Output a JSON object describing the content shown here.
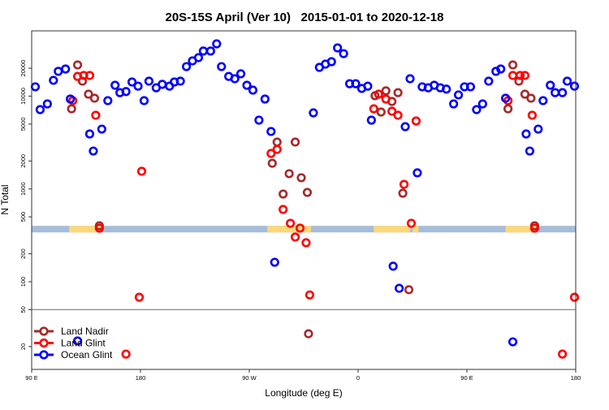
{
  "chart_data": {
    "type": "scatter",
    "title": "20S-15S April (Ver 10)   2015-01-01 to 2020-12-18",
    "xlabel": "Longitude (deg E)",
    "ylabel": "N Total",
    "x_note": "continuous longitude in degrees, 90E wrapping through 180 to 180",
    "xlim": [
      90,
      540
    ],
    "ylim": [
      11,
      51000
    ],
    "yscale": "log",
    "x_ticks": [
      {
        "value": 90,
        "label": "90 E"
      },
      {
        "value": 180,
        "label": "180"
      },
      {
        "value": 270,
        "label": "90 W"
      },
      {
        "value": 360,
        "label": "0"
      },
      {
        "value": 450,
        "label": "90 E"
      },
      {
        "value": 540,
        "label": "180"
      }
    ],
    "y_ticks": [
      {
        "value": 20,
        "label": "20"
      },
      {
        "value": 50,
        "label": "50"
      },
      {
        "value": 100,
        "label": "100"
      },
      {
        "value": 200,
        "label": "200"
      },
      {
        "value": 500,
        "label": "500"
      },
      {
        "value": 1000,
        "label": "1000"
      },
      {
        "value": 2000,
        "label": "2000"
      },
      {
        "value": 5000,
        "label": "5000"
      },
      {
        "value": 10000,
        "label": "10000"
      },
      {
        "value": 20000,
        "label": "20000"
      }
    ],
    "reference_line": 50,
    "legend_position": "bottom-left",
    "land_mask": {
      "level_range": [
        340,
        400
      ],
      "ocean_color": "#a7bcd9",
      "land_color": "#fcd87a",
      "land_segments": [
        [
          121,
          148
        ],
        [
          285,
          321
        ],
        [
          373,
          403
        ],
        [
          405,
          410
        ],
        [
          482,
          509
        ]
      ]
    },
    "series": [
      {
        "name": "Land Nadir",
        "color": "#a52a2a",
        "points": [
          [
            128,
            21700
          ],
          [
            132,
            14500
          ],
          [
            137,
            10500
          ],
          [
            142,
            9500
          ],
          [
            123,
            7300
          ],
          [
            146,
            401
          ],
          [
            293,
            3200
          ],
          [
            308,
            3200
          ],
          [
            289,
            1890
          ],
          [
            303,
            1460
          ],
          [
            313,
            1320
          ],
          [
            298,
            881
          ],
          [
            318,
            917
          ],
          [
            319,
            27.5
          ],
          [
            374,
            10100
          ],
          [
            383,
            11400
          ],
          [
            393,
            10900
          ],
          [
            388,
            8750
          ],
          [
            379,
            6740
          ],
          [
            397,
            899
          ],
          [
            402,
            82
          ],
          [
            488,
            21700
          ],
          [
            493,
            14500
          ],
          [
            498,
            10500
          ],
          [
            503,
            9500
          ],
          [
            484,
            7300
          ],
          [
            506,
            401
          ]
        ]
      },
      {
        "name": "Land Glint",
        "color": "#ff0000",
        "points": [
          [
            128,
            16300
          ],
          [
            133,
            16700
          ],
          [
            138,
            16700
          ],
          [
            124,
            8940
          ],
          [
            143,
            6220
          ],
          [
            146,
            378
          ],
          [
            181,
            1550
          ],
          [
            179,
            68
          ],
          [
            168,
            16.6
          ],
          [
            293,
            2670
          ],
          [
            288,
            2410
          ],
          [
            298,
            601
          ],
          [
            304,
            426
          ],
          [
            308,
            303
          ],
          [
            312,
            378
          ],
          [
            317,
            263
          ],
          [
            320,
            72
          ],
          [
            377,
            10500
          ],
          [
            383,
            9300
          ],
          [
            373,
            7300
          ],
          [
            388,
            6870
          ],
          [
            393,
            6220
          ],
          [
            408,
            5400
          ],
          [
            398,
            1120
          ],
          [
            404,
            426
          ],
          [
            488,
            16700
          ],
          [
            494,
            16700
          ],
          [
            498,
            16700
          ],
          [
            484,
            8940
          ],
          [
            504,
            6220
          ],
          [
            506,
            378
          ],
          [
            539,
            68
          ],
          [
            529,
            16.6
          ]
        ]
      },
      {
        "name": "Ocean Glint",
        "color": "#0000ff",
        "points": [
          [
            93,
            12600
          ],
          [
            97,
            7160
          ],
          [
            103,
            8240
          ],
          [
            108,
            14800
          ],
          [
            112,
            18500
          ],
          [
            118,
            19600
          ],
          [
            122,
            9300
          ],
          [
            128,
            23
          ],
          [
            138,
            3910
          ],
          [
            141,
            2560
          ],
          [
            148,
            4410
          ],
          [
            153,
            8940
          ],
          [
            159,
            13100
          ],
          [
            163,
            10900
          ],
          [
            168,
            11200
          ],
          [
            173,
            14200
          ],
          [
            178,
            12800
          ],
          [
            183,
            8940
          ],
          [
            187,
            14500
          ],
          [
            193,
            12300
          ],
          [
            198,
            13400
          ],
          [
            204,
            12800
          ],
          [
            208,
            14200
          ],
          [
            213,
            14500
          ],
          [
            218,
            20800
          ],
          [
            223,
            24000
          ],
          [
            228,
            26000
          ],
          [
            232,
            30600
          ],
          [
            238,
            30600
          ],
          [
            243,
            36600
          ],
          [
            247,
            20800
          ],
          [
            253,
            16300
          ],
          [
            258,
            15400
          ],
          [
            263,
            17400
          ],
          [
            268,
            13100
          ],
          [
            273,
            11600
          ],
          [
            278,
            5510
          ],
          [
            283,
            9300
          ],
          [
            288,
            4160
          ],
          [
            291,
            162
          ],
          [
            323,
            6600
          ],
          [
            328,
            20400
          ],
          [
            333,
            22100
          ],
          [
            338,
            23500
          ],
          [
            343,
            33100
          ],
          [
            348,
            28700
          ],
          [
            353,
            13600
          ],
          [
            358,
            13600
          ],
          [
            363,
            12100
          ],
          [
            368,
            12800
          ],
          [
            371,
            5510
          ],
          [
            389,
            147
          ],
          [
            394,
            85
          ],
          [
            399,
            4690
          ],
          [
            403,
            15400
          ],
          [
            409,
            1490
          ],
          [
            413,
            12600
          ],
          [
            418,
            12300
          ],
          [
            423,
            13100
          ],
          [
            428,
            12300
          ],
          [
            433,
            11900
          ],
          [
            439,
            8240
          ],
          [
            443,
            10300
          ],
          [
            448,
            12600
          ],
          [
            453,
            12600
          ],
          [
            458,
            7160
          ],
          [
            463,
            8240
          ],
          [
            468,
            14500
          ],
          [
            474,
            18500
          ],
          [
            478,
            19600
          ],
          [
            482,
            9500
          ],
          [
            488,
            22.5
          ],
          [
            499,
            3910
          ],
          [
            502,
            2560
          ],
          [
            509,
            4410
          ],
          [
            513,
            8940
          ],
          [
            519,
            13100
          ],
          [
            523,
            10900
          ],
          [
            529,
            10900
          ],
          [
            533,
            14500
          ],
          [
            539,
            12800
          ]
        ]
      }
    ]
  }
}
